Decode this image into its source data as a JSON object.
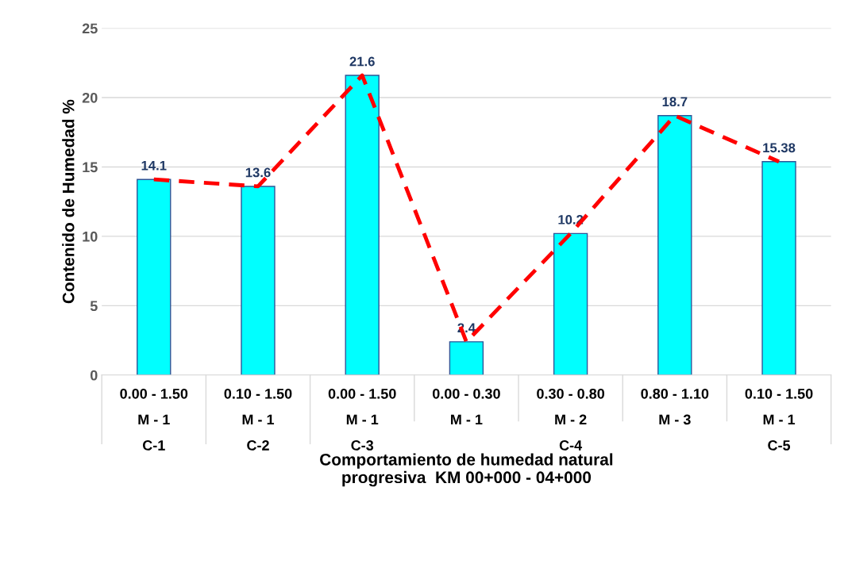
{
  "chart_data": {
    "type": "bar",
    "xlabel": "Comportamiento de humedad natural\nprogresiva  KM 00+000 - 04+000",
    "ylabel": "Contenido de Humedad %",
    "categories": [
      "0.00 - 1.50\nM - 1\nC-1",
      "0.10 - 1.50\nM - 1\nC-2",
      "0.00 - 1.50\nM - 1\nC-3",
      "0.00 - 0.30\nM - 1",
      "0.30 - 0.80\nM - 2\nC-4",
      "0.80 - 1.10\nM - 3",
      "0.10 - 1.50\nM - 1\nC-5"
    ],
    "series": [
      {
        "color": "#00ffff",
        "values": [
          14.1,
          13.6,
          21.6,
          2.4,
          10.2,
          18.7,
          15.38
        ],
        "value_labels": [
          "14.1",
          "13.6",
          "21.6",
          "2.4",
          "10.2",
          "18.7",
          "15.38"
        ]
      },
      {
        "type": "line",
        "color": "#ff0000",
        "line_style": "dashed",
        "values": [
          14.1,
          13.6,
          21.6,
          2.4,
          10.2,
          18.7,
          15.38
        ]
      }
    ],
    "ylim": [
      0,
      25
    ],
    "yticks": [
      0,
      5,
      10,
      15,
      20,
      25
    ],
    "grid": "y",
    "legend": false
  }
}
